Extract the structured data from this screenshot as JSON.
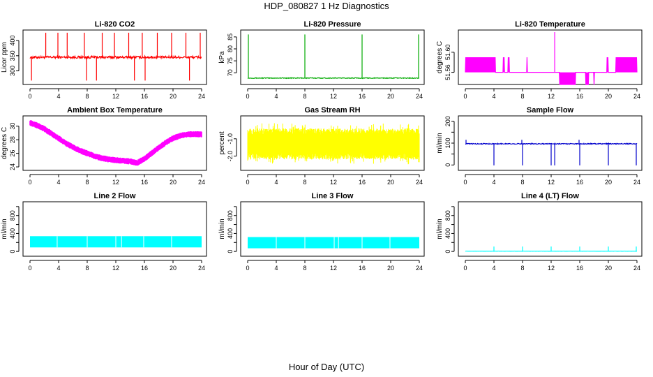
{
  "title": "HDP_080827  1 Hz Diagnostics",
  "xlabel": "Hour of Day (UTC)",
  "chart_data": [
    {
      "id": "co2",
      "type": "line",
      "title": "Li-820 CO2",
      "ylabel": "Licor ppm",
      "color": "#ff0000",
      "xlim": [
        0,
        24
      ],
      "xticks": [
        0,
        4,
        8,
        12,
        16,
        20,
        24
      ],
      "ylim": [
        262,
        428
      ],
      "yticks": [
        300,
        350,
        400
      ],
      "xticklabels": [
        "0",
        "4",
        "8",
        "12",
        "16",
        "20",
        "24"
      ],
      "yticklabels": [
        "300",
        "350",
        "400"
      ],
      "pattern": "baseline_spikes",
      "baseline": 345,
      "noise": 4,
      "spikes_up": [
        2.2,
        3.9,
        5.2,
        7.6,
        10.1,
        11.8,
        13.8,
        15.7,
        17.8,
        19.8,
        21.8,
        23.8
      ],
      "spike_up_to": 426,
      "spikes_down": [
        0.2,
        7.9,
        9.3,
        14.6,
        16.1,
        22.3
      ],
      "spike_down_to": 268
    },
    {
      "id": "pressure",
      "type": "line",
      "title": "Li-820 Pressure",
      "ylabel": "kPa",
      "color": "#00aa00",
      "xlim": [
        0,
        24
      ],
      "xticks": [
        0,
        4,
        8,
        12,
        16,
        20,
        24
      ],
      "ylim": [
        66,
        87
      ],
      "yticks": [
        70,
        75,
        80,
        85
      ],
      "xticklabels": [
        "0",
        "4",
        "8",
        "12",
        "16",
        "20",
        "24"
      ],
      "yticklabels": [
        "70",
        "75",
        "80",
        "85"
      ],
      "pattern": "baseline_spikes",
      "baseline": 67.8,
      "noise": 0.15,
      "spikes_up": [
        0.1,
        8.0,
        16.0,
        23.9
      ],
      "spike_up_to": 86,
      "spikes_down": [],
      "spike_down_to": 67
    },
    {
      "id": "licor-temp",
      "type": "line",
      "title": "Li-820 Temperature",
      "ylabel": "degrees C",
      "color": "#ff00ff",
      "xlim": [
        0,
        24
      ],
      "xticks": [
        0,
        4,
        8,
        12,
        16,
        20,
        24
      ],
      "ylim": [
        51.54,
        51.64
      ],
      "yticks": [
        51.56,
        51.6
      ],
      "xticklabels": [
        "0",
        "4",
        "8",
        "12",
        "16",
        "20",
        "24"
      ],
      "yticklabels": [
        "51.56",
        "51.60"
      ],
      "pattern": "two_level",
      "baseline": 51.56,
      "high": 51.59,
      "low": 51.535,
      "high_bands": [
        [
          0,
          4.2
        ],
        [
          5.3,
          5.5
        ],
        [
          6.0,
          6.2
        ],
        [
          8.6,
          8.7
        ],
        [
          19.8,
          20.0
        ],
        [
          21.0,
          24.0
        ]
      ],
      "low_bands": [
        [
          13.2,
          15.4
        ],
        [
          16.8,
          17.2
        ],
        [
          18.0,
          18.1
        ]
      ],
      "spikes_up": [
        12.5
      ],
      "spike_up_to": 51.64
    },
    {
      "id": "ambient-temp",
      "type": "line",
      "title": "Ambient Box Temperature",
      "ylabel": "degrees C",
      "color": "#ff00ff",
      "xlim": [
        0,
        24
      ],
      "xticks": [
        0,
        4,
        8,
        12,
        16,
        20,
        24
      ],
      "ylim": [
        23.8,
        31.2
      ],
      "yticks": [
        24,
        26,
        28,
        30
      ],
      "xticklabels": [
        "0",
        "4",
        "8",
        "12",
        "16",
        "20",
        "24"
      ],
      "yticklabels": [
        "24",
        "26",
        "28",
        "30"
      ],
      "pattern": "smooth_band",
      "curve_x": [
        0,
        1,
        2,
        3,
        4,
        5,
        6,
        7,
        8,
        9,
        10,
        11,
        12,
        13,
        14,
        15,
        16,
        17,
        18,
        19,
        20,
        21,
        22,
        23,
        24
      ],
      "curve_y": [
        30.5,
        30.1,
        29.6,
        28.9,
        28.2,
        27.5,
        26.9,
        26.4,
        26.0,
        25.6,
        25.3,
        25.1,
        25.0,
        24.9,
        24.8,
        24.6,
        25.2,
        26.0,
        26.8,
        27.6,
        28.2,
        28.6,
        28.8,
        28.8,
        28.8
      ],
      "band": 0.45
    },
    {
      "id": "rh",
      "type": "line",
      "title": "Gas Stream RH",
      "ylabel": "percent",
      "color": "#ffff00",
      "xlim": [
        0,
        24
      ],
      "xticks": [
        0,
        4,
        8,
        12,
        16,
        20,
        24
      ],
      "ylim": [
        -2.7,
        0.2
      ],
      "yticks": [
        -2,
        -1
      ],
      "xticklabels": [
        "0",
        "4",
        "8",
        "12",
        "16",
        "20",
        "24"
      ],
      "yticklabels": [
        "-2.0",
        "-1.0"
      ],
      "pattern": "noise_band",
      "center": -1.3,
      "half": 0.9,
      "extreme": 1.2
    },
    {
      "id": "sample-flow",
      "type": "line",
      "title": "Sample Flow",
      "ylabel": "ml/min",
      "color": "#0000cc",
      "xlim": [
        0,
        24
      ],
      "xticks": [
        0,
        4,
        8,
        12,
        16,
        20,
        24
      ],
      "ylim": [
        -15,
        215
      ],
      "yticks": [
        0,
        50,
        100,
        150,
        200
      ],
      "xticklabels": [
        "0",
        "4",
        "8",
        "12",
        "16",
        "20",
        "24"
      ],
      "yticklabels": [
        "0",
        "",
        "100",
        "",
        "200"
      ],
      "pattern": "baseline_spikes",
      "baseline": 97,
      "noise": 2,
      "spikes_up": [
        0.1,
        7.9,
        15.9
      ],
      "spike_up_to": 115,
      "spikes_down": [
        4.0,
        8.0,
        12.0,
        12.5,
        16.0,
        20.0,
        23.9
      ],
      "spike_down_to": -2
    },
    {
      "id": "line2-flow",
      "type": "line",
      "title": "Line 2 Flow",
      "ylabel": "ml/min",
      "color": "#00ffff",
      "xlim": [
        0,
        24
      ],
      "xticks": [
        0,
        4,
        8,
        12,
        16,
        20,
        24
      ],
      "ylim": [
        -60,
        1060
      ],
      "yticks": [
        0,
        200,
        400,
        600,
        800,
        1000
      ],
      "xticklabels": [
        "0",
        "4",
        "8",
        "12",
        "16",
        "20",
        "24"
      ],
      "yticklabels": [
        "0",
        "",
        "400",
        "",
        "800",
        ""
      ],
      "pattern": "block",
      "lo": 90,
      "hi": 340,
      "gaps": [
        3.8,
        8.0,
        12.0,
        12.8,
        15.9,
        19.8
      ]
    },
    {
      "id": "line3-flow",
      "type": "line",
      "title": "Line 3 Flow",
      "ylabel": "ml/min",
      "color": "#00ffff",
      "xlim": [
        0,
        24
      ],
      "xticks": [
        0,
        4,
        8,
        12,
        16,
        20,
        24
      ],
      "ylim": [
        -60,
        1060
      ],
      "yticks": [
        0,
        200,
        400,
        600,
        800,
        1000
      ],
      "xticklabels": [
        "0",
        "4",
        "8",
        "12",
        "16",
        "20",
        "24"
      ],
      "yticklabels": [
        "0",
        "",
        "400",
        "",
        "800",
        ""
      ],
      "pattern": "block",
      "lo": 70,
      "hi": 320,
      "gaps": [
        4.0,
        8.0,
        12.1,
        12.7,
        16.0,
        19.9
      ]
    },
    {
      "id": "line4-flow",
      "type": "line",
      "title": "Line 4 (LT) Flow",
      "ylabel": "ml/min",
      "color": "#00ffff",
      "xlim": [
        0,
        24
      ],
      "xticks": [
        0,
        4,
        8,
        12,
        16,
        20,
        24
      ],
      "ylim": [
        -60,
        1060
      ],
      "yticks": [
        0,
        200,
        400,
        600,
        800,
        1000
      ],
      "xticklabels": [
        "0",
        "4",
        "8",
        "12",
        "16",
        "20",
        "24"
      ],
      "yticklabels": [
        "0",
        "",
        "400",
        "",
        "800",
        ""
      ],
      "pattern": "baseline_spikes",
      "baseline": 5,
      "noise": 2,
      "spikes_up": [
        4.0,
        8.0,
        12.0,
        16.0,
        20.0,
        23.9
      ],
      "spike_up_to": 110,
      "spikes_down": [],
      "spike_down_to": 0
    }
  ]
}
